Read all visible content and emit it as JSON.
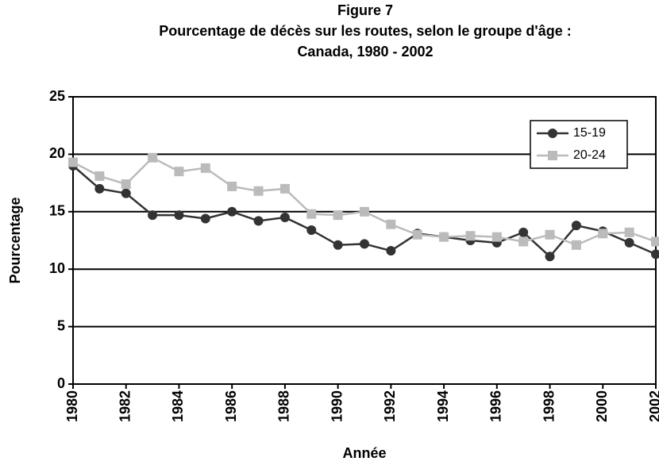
{
  "chart_data": {
    "type": "line",
    "title": "Figure 7",
    "subtitle": [
      "Pourcentage de décès sur les routes, selon le groupe d'âge :",
      "Canada, 1980 - 2002"
    ],
    "x_label": "Année",
    "y_label": "Pourcentage",
    "x": [
      1980,
      1981,
      1982,
      1983,
      1984,
      1985,
      1986,
      1987,
      1988,
      1989,
      1990,
      1991,
      1992,
      1993,
      1994,
      1995,
      1996,
      1997,
      1998,
      1999,
      2000,
      2001,
      2002
    ],
    "series": [
      {
        "name": "15-19",
        "color": "#333333",
        "marker": "circle",
        "values": [
          19.0,
          17.0,
          16.6,
          14.7,
          14.7,
          14.4,
          15.0,
          14.2,
          14.5,
          13.4,
          12.1,
          12.2,
          11.6,
          13.1,
          12.8,
          12.5,
          12.3,
          13.2,
          11.1,
          13.8,
          13.3,
          12.3,
          11.3
        ]
      },
      {
        "name": "20-24",
        "color": "#bbbbbb",
        "marker": "square",
        "values": [
          19.3,
          18.1,
          17.4,
          19.7,
          18.5,
          18.8,
          17.2,
          16.8,
          17.0,
          14.8,
          14.7,
          15.0,
          13.9,
          13.0,
          12.8,
          12.9,
          12.8,
          12.4,
          13.0,
          12.1,
          13.1,
          13.2,
          12.4
        ]
      }
    ],
    "xlim": [
      1980,
      2002
    ],
    "xticks": [
      1980,
      1982,
      1984,
      1986,
      1988,
      1990,
      1992,
      1994,
      1996,
      1998,
      2000,
      2002
    ],
    "ylim": [
      0,
      25
    ],
    "yticks": [
      0,
      5,
      10,
      15,
      20,
      25
    ],
    "grid": true,
    "legend": "top-right"
  }
}
